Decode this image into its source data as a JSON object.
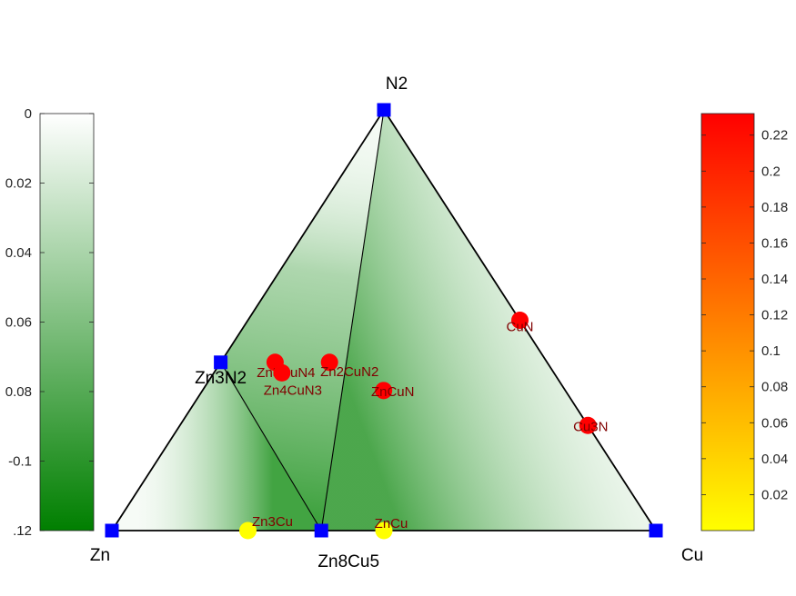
{
  "chart_data": {
    "type": "scatter",
    "subtype": "ternary-phase-diagram",
    "corners": {
      "top": "N2",
      "left": "Zn",
      "right": "Cu"
    },
    "stable_phases": [
      {
        "name": "N2",
        "frac_n": 1.0,
        "frac_cu": 0.0,
        "label": "N2"
      },
      {
        "name": "Zn",
        "frac_n": 0.0,
        "frac_cu": 0.0,
        "label": "Zn"
      },
      {
        "name": "Cu",
        "frac_n": 0.0,
        "frac_cu": 1.0,
        "label": "Cu"
      },
      {
        "name": "Zn3N2",
        "frac_n": 0.4,
        "frac_cu": 0.0,
        "label": "Zn3N2"
      },
      {
        "name": "Zn8Cu5",
        "frac_n": 0.0,
        "frac_cu": 0.385,
        "label": "Zn8Cu5"
      }
    ],
    "tie_lines": [
      [
        "N2",
        "Zn8Cu5"
      ],
      [
        "Zn3N2",
        "Zn8Cu5"
      ]
    ],
    "unstable_phases": [
      {
        "name": "CuN",
        "frac_n": 0.5,
        "frac_cu": 0.5,
        "e_above_hull": 0.23,
        "label": "CuN"
      },
      {
        "name": "Cu3N",
        "frac_n": 0.25,
        "frac_cu": 0.75,
        "e_above_hull": 0.23,
        "label": "Cu3N"
      },
      {
        "name": "ZnCuN",
        "frac_n": 0.333,
        "frac_cu": 0.333,
        "e_above_hull": 0.23,
        "label": "ZnCuN"
      },
      {
        "name": "Zn2CuN2",
        "frac_n": 0.4,
        "frac_cu": 0.2,
        "e_above_hull": 0.23,
        "label": "Zn2CuN2"
      },
      {
        "name": "Zn5CuN4",
        "frac_n": 0.4,
        "frac_cu": 0.1,
        "e_above_hull": 0.23,
        "label": "Zn5CuN4"
      },
      {
        "name": "Zn4CuN3",
        "frac_n": 0.375,
        "frac_cu": 0.125,
        "e_above_hull": 0.23,
        "label": "Zn4CuN3"
      },
      {
        "name": "Zn3Cu",
        "frac_n": 0.0,
        "frac_cu": 0.25,
        "e_above_hull": 0.0,
        "label": "Zn3Cu"
      },
      {
        "name": "ZnCu",
        "frac_n": 0.0,
        "frac_cu": 0.5,
        "e_above_hull": 0.0,
        "label": "ZnCu"
      }
    ],
    "formation_energy_colorbar": {
      "colors": [
        "#007f00",
        "#ffffff"
      ],
      "range": [
        -0.12,
        0
      ],
      "ticks": [
        0,
        -0.02,
        -0.04,
        -0.06,
        -0.08,
        -0.1,
        -0.12
      ],
      "tick_labels": [
        "0",
        "0.02",
        "0.04",
        "0.06",
        "0.08",
        "-0.1",
        ".12"
      ]
    },
    "hull_distance_colorbar": {
      "colors": [
        "#ffff00",
        "#ff0000"
      ],
      "range": [
        0,
        0.232
      ],
      "ticks": [
        0.02,
        0.04,
        0.06,
        0.08,
        0.1,
        0.12,
        0.14,
        0.16,
        0.18,
        0.2,
        0.22
      ],
      "tick_labels": [
        "0.02",
        "0.04",
        "0.06",
        "0.08",
        "0.1",
        "0.12",
        "0.14",
        "0.16",
        "0.18",
        "0.2",
        "0.22"
      ]
    },
    "stable_marker_color": "#0000ff",
    "edge_color": "#000000"
  }
}
